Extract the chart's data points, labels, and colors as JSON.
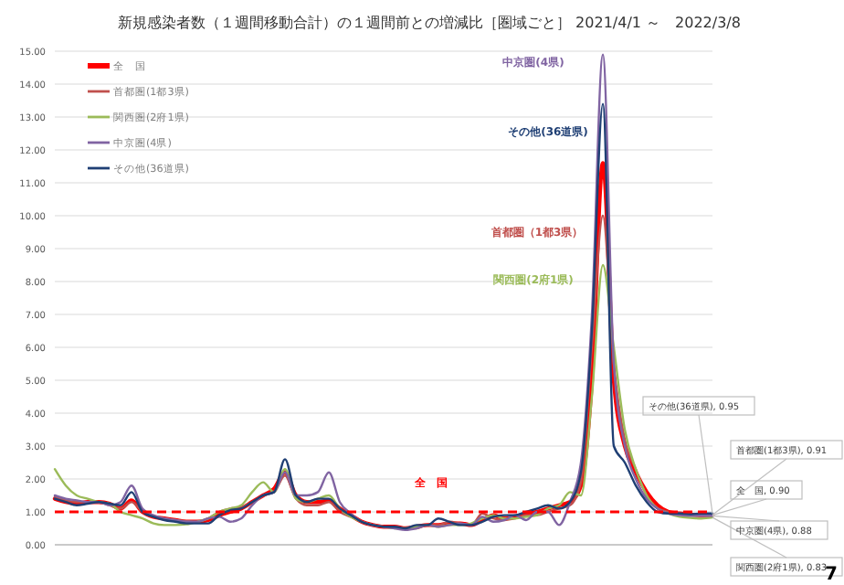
{
  "chart_data": {
    "type": "line",
    "title": "新規感染者数（１週間移動合計）の１週間前との増減比［圏域ごと］ 2021/4/1 ～　2022/3/8",
    "categories": [
      null,
      null,
      null,
      null,
      null,
      null,
      null,
      null,
      null,
      null,
      null,
      null,
      null,
      null,
      null,
      null,
      null,
      null,
      null,
      null,
      null,
      null,
      null,
      null,
      null,
      null,
      null,
      null,
      null,
      null,
      null,
      null,
      null,
      null,
      null,
      null,
      null,
      null,
      null,
      null,
      null,
      null,
      null,
      null,
      null,
      null,
      null,
      null,
      null,
      null,
      null,
      null,
      null,
      null,
      null,
      null,
      null,
      null,
      null,
      null,
      null
    ],
    "ylim": [
      0,
      15
    ],
    "yticks": [
      {
        "value": 0,
        "label": "0.00"
      },
      {
        "value": 1,
        "label": "1.00"
      },
      {
        "value": 2,
        "label": "2.00"
      },
      {
        "value": 3,
        "label": "3.00"
      },
      {
        "value": 4,
        "label": "4.00"
      },
      {
        "value": 5,
        "label": "5.00"
      },
      {
        "value": 6,
        "label": "6.00"
      },
      {
        "value": 7,
        "label": "7.00"
      },
      {
        "value": 8,
        "label": "8.00"
      },
      {
        "value": 9,
        "label": "9.00"
      },
      {
        "value": 10,
        "label": "10.00"
      },
      {
        "value": 11,
        "label": "11.00"
      },
      {
        "value": 12,
        "label": "12.00"
      },
      {
        "value": 13,
        "label": "13.00"
      },
      {
        "value": 14,
        "label": "14.00"
      },
      {
        "value": 15,
        "label": "15.00"
      }
    ],
    "grid": "y",
    "legend": "top left",
    "marker": "none",
    "line_style": "solid",
    "series": [
      {
        "name": "全　国",
        "color": "#ff0000",
        "values": [
          1.4,
          1.3,
          1.25,
          1.3,
          1.3,
          1.25,
          1.1,
          1.35,
          1.0,
          0.85,
          0.8,
          0.75,
          0.7,
          0.7,
          0.75,
          0.9,
          1.0,
          1.1,
          1.3,
          1.5,
          1.7,
          2.2,
          1.5,
          1.3,
          1.3,
          1.35,
          1.1,
          0.9,
          0.7,
          0.6,
          0.55,
          0.55,
          0.5,
          0.55,
          0.6,
          0.6,
          0.65,
          0.65,
          0.6,
          0.75,
          0.9,
          0.8,
          0.85,
          0.95,
          1.0,
          1.1,
          1.2,
          1.3,
          1.8,
          5.0,
          11.6,
          5.0,
          3.0,
          2.2,
          1.6,
          1.2,
          1.0,
          0.95,
          0.92,
          0.9,
          0.9
        ],
        "value_labels": [
          null,
          null,
          null,
          null,
          null,
          null,
          null,
          null,
          null,
          null,
          null,
          null,
          null,
          null,
          null,
          null,
          null,
          null,
          null,
          null,
          null,
          null,
          null,
          null,
          null,
          null,
          null,
          null,
          null,
          null,
          null,
          null,
          null,
          null,
          null,
          null,
          null,
          null,
          null,
          null,
          null,
          null,
          null,
          null,
          null,
          null,
          null,
          null,
          null,
          null,
          null,
          null,
          null,
          null,
          null,
          null,
          null,
          null,
          null,
          null,
          "全　国, 0.90"
        ]
      },
      {
        "name": "首都圏(1都3県)",
        "color": "#c0504d",
        "values": [
          1.45,
          1.35,
          1.3,
          1.3,
          1.3,
          1.2,
          1.1,
          1.3,
          1.0,
          0.85,
          0.8,
          0.75,
          0.72,
          0.7,
          0.8,
          1.0,
          1.1,
          1.15,
          1.3,
          1.5,
          1.6,
          2.1,
          1.4,
          1.2,
          1.2,
          1.3,
          1.0,
          0.85,
          0.7,
          0.6,
          0.55,
          0.55,
          0.5,
          0.5,
          0.6,
          0.6,
          0.7,
          0.65,
          0.6,
          0.95,
          0.8,
          0.75,
          0.8,
          0.9,
          0.9,
          1.0,
          1.1,
          1.2,
          1.9,
          6.0,
          10.0,
          5.5,
          3.2,
          2.3,
          1.5,
          1.1,
          1.0,
          0.95,
          0.92,
          0.9,
          0.91
        ],
        "value_labels": [
          null,
          null,
          null,
          null,
          null,
          null,
          null,
          null,
          null,
          null,
          null,
          null,
          null,
          null,
          null,
          null,
          null,
          null,
          null,
          null,
          null,
          null,
          null,
          null,
          null,
          null,
          null,
          null,
          null,
          null,
          null,
          null,
          null,
          null,
          null,
          null,
          null,
          null,
          null,
          null,
          null,
          null,
          null,
          null,
          null,
          null,
          null,
          null,
          null,
          null,
          null,
          null,
          null,
          null,
          null,
          null,
          null,
          null,
          null,
          null,
          "首都圏(1都3県), 0.91"
        ]
      },
      {
        "name": "関西圏(2府1県)",
        "color": "#9bbb59",
        "values": [
          2.3,
          1.8,
          1.5,
          1.4,
          1.3,
          1.25,
          1.0,
          0.9,
          0.8,
          0.65,
          0.6,
          0.6,
          0.62,
          0.7,
          0.8,
          1.0,
          1.1,
          1.2,
          1.6,
          1.9,
          1.6,
          2.3,
          1.4,
          1.3,
          1.4,
          1.5,
          1.1,
          0.85,
          0.7,
          0.6,
          0.55,
          0.5,
          0.5,
          0.55,
          0.6,
          0.55,
          0.6,
          0.6,
          0.65,
          0.8,
          0.9,
          0.8,
          0.8,
          0.85,
          0.9,
          1.1,
          1.2,
          1.6,
          1.5,
          4.5,
          8.5,
          6.0,
          3.5,
          2.3,
          1.5,
          1.1,
          0.95,
          0.85,
          0.82,
          0.8,
          0.83
        ],
        "value_labels": [
          null,
          null,
          null,
          null,
          null,
          null,
          null,
          null,
          null,
          null,
          null,
          null,
          null,
          null,
          null,
          null,
          null,
          null,
          null,
          null,
          null,
          null,
          null,
          null,
          null,
          null,
          null,
          null,
          null,
          null,
          null,
          null,
          null,
          null,
          null,
          null,
          null,
          null,
          null,
          null,
          null,
          null,
          null,
          null,
          null,
          null,
          null,
          null,
          null,
          null,
          null,
          null,
          null,
          null,
          null,
          null,
          null,
          null,
          null,
          null,
          "関西圏(2府1県), 0.83"
        ]
      },
      {
        "name": "中京圏(4県)",
        "color": "#8064a2",
        "values": [
          1.5,
          1.4,
          1.35,
          1.3,
          1.3,
          1.2,
          1.3,
          1.8,
          1.1,
          0.9,
          0.8,
          0.75,
          0.7,
          0.7,
          0.8,
          0.85,
          0.7,
          0.8,
          1.2,
          1.5,
          1.6,
          2.2,
          1.5,
          1.5,
          1.6,
          2.2,
          1.3,
          0.95,
          0.7,
          0.6,
          0.55,
          0.5,
          0.45,
          0.5,
          0.6,
          0.55,
          0.6,
          0.65,
          0.6,
          0.85,
          0.7,
          0.75,
          0.9,
          0.75,
          1.0,
          1.0,
          0.6,
          1.3,
          2.5,
          7.0,
          14.9,
          5.5,
          3.0,
          2.0,
          1.4,
          1.1,
          0.95,
          0.9,
          0.88,
          0.88,
          0.88
        ],
        "value_labels": [
          null,
          null,
          null,
          null,
          null,
          null,
          null,
          null,
          null,
          null,
          null,
          null,
          null,
          null,
          null,
          null,
          null,
          null,
          null,
          null,
          null,
          null,
          null,
          null,
          null,
          null,
          null,
          null,
          null,
          null,
          null,
          null,
          null,
          null,
          null,
          null,
          null,
          null,
          null,
          null,
          null,
          null,
          null,
          null,
          null,
          null,
          null,
          null,
          null,
          null,
          null,
          null,
          null,
          null,
          null,
          null,
          null,
          null,
          null,
          null,
          "中京圏(4県), 0.88"
        ]
      },
      {
        "name": "その他(36道県)",
        "color": "#1f3f74",
        "values": [
          1.4,
          1.3,
          1.2,
          1.25,
          1.3,
          1.25,
          1.2,
          1.6,
          1.0,
          0.85,
          0.75,
          0.7,
          0.65,
          0.65,
          0.65,
          0.9,
          1.05,
          1.1,
          1.3,
          1.5,
          1.6,
          2.6,
          1.5,
          1.3,
          1.4,
          1.4,
          1.1,
          0.9,
          0.7,
          0.6,
          0.55,
          0.55,
          0.5,
          0.6,
          0.6,
          0.8,
          0.7,
          0.6,
          0.6,
          0.7,
          0.85,
          0.9,
          0.9,
          1.0,
          1.1,
          1.2,
          1.1,
          1.3,
          2.2,
          6.5,
          13.4,
          3.0,
          2.5,
          1.8,
          1.3,
          1.0,
          0.95,
          0.95,
          0.93,
          0.95,
          0.95
        ],
        "value_labels": [
          null,
          null,
          null,
          null,
          null,
          null,
          null,
          null,
          null,
          null,
          null,
          null,
          null,
          null,
          null,
          null,
          null,
          null,
          null,
          null,
          null,
          null,
          null,
          null,
          null,
          null,
          null,
          null,
          null,
          null,
          null,
          null,
          null,
          null,
          null,
          null,
          null,
          null,
          null,
          null,
          null,
          null,
          null,
          null,
          null,
          null,
          null,
          null,
          null,
          null,
          null,
          null,
          null,
          null,
          null,
          null,
          null,
          null,
          null,
          null,
          "その他(36道県), 0.95"
        ]
      }
    ],
    "ref_lines": [
      {
        "axis": "y",
        "value": 1,
        "color": "#ff0000",
        "line_style": "dashed"
      }
    ],
    "annotations": [
      "全　国",
      "中京圏(4県)",
      "その他(36道県)",
      "首都圏（1都3県）",
      "関西圏(2府1県)",
      "7"
    ]
  }
}
